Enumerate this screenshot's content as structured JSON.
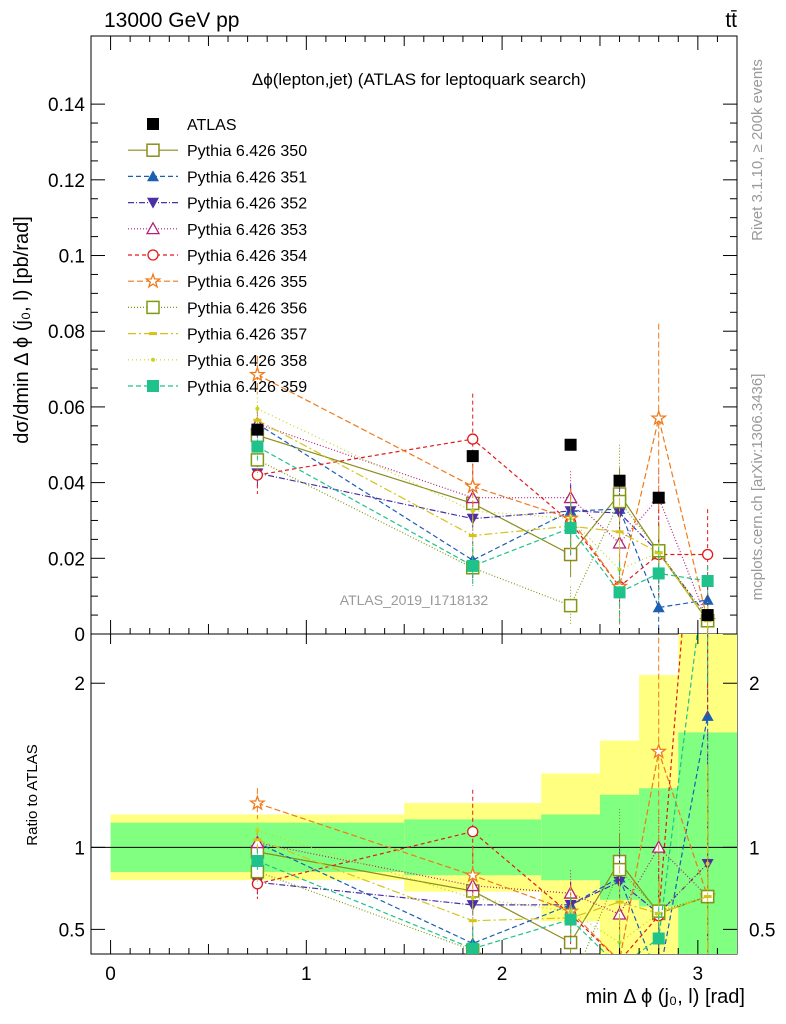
{
  "header": {
    "energy_label": "13000 GeV pp",
    "process_label": "tt̄",
    "rivet_label": "Rivet 3.1.10, ≥ 200k events",
    "mcplots_label": "mcplots.cern.ch [arXiv:1306.3436]",
    "analysis_label": "ATLAS_2019_I1718132"
  },
  "chart_data": {
    "type": "scatter",
    "title": "Δϕ(lepton,jet) (ATLAS for leptoquark search)",
    "xlabel": "min Δ ϕ (j₀, l) [rad]",
    "ylabel": "dσ/dmin Δ ϕ (j₀, l) [pb/rad]",
    "ratio_ylabel": "Ratio to ATLAS",
    "xlim": [
      -0.1,
      3.2
    ],
    "ylim": [
      0,
      0.158
    ],
    "ratio_ylim": [
      0.35,
      2.3
    ],
    "x_ticks": [
      0,
      1,
      2,
      3
    ],
    "x_tick_labels": [
      "0",
      "1",
      "2",
      "3"
    ],
    "y_ticks": [
      0,
      0.02,
      0.04,
      0.06,
      0.08,
      0.1,
      0.12,
      0.14
    ],
    "y_tick_labels": [
      "0",
      "0.02",
      "0.04",
      "0.06",
      "0.08",
      "0.1",
      "0.12",
      "0.14"
    ],
    "ratio_ticks": [
      0.5,
      1,
      2
    ],
    "ratio_tick_labels": [
      "0.5",
      "1",
      "2"
    ],
    "x": [
      0.75,
      1.85,
      2.35,
      2.6,
      2.8,
      3.05
    ],
    "bin_edges": [
      0,
      1.5,
      2.2,
      2.5,
      2.7,
      2.9,
      3.2
    ],
    "data": {
      "name": "ATLAS",
      "values": [
        0.054,
        0.047,
        0.05,
        0.0405,
        0.036,
        0.005
      ],
      "band_inner": [
        0.15,
        0.17,
        0.2,
        0.32,
        0.36,
        0.7
      ],
      "band_outer": [
        0.2,
        0.27,
        0.45,
        0.65,
        1.05,
        1.3
      ]
    },
    "series": [
      {
        "name": "Pythia 6.426 350",
        "color": "#8c8c1e",
        "dash": "",
        "marker": "square-open",
        "values": [
          0.0525,
          0.0345,
          0.021,
          0.037,
          0.0215,
          0.0035
        ],
        "errors": [
          0.004,
          0.004,
          0.006,
          0.007,
          0.008,
          0.004
        ]
      },
      {
        "name": "Pythia 6.426 351",
        "color": "#1a5fb4",
        "dash": "5,3",
        "marker": "triangle-up",
        "values": [
          0.0555,
          0.0195,
          0.0325,
          0.033,
          0.007,
          0.009
        ],
        "errors": [
          0.004,
          0.005,
          0.007,
          0.008,
          0.006,
          0.004
        ]
      },
      {
        "name": "Pythia 6.426 352",
        "color": "#4b2fa6",
        "dash": "6,2,1,2",
        "marker": "triangle-down",
        "values": [
          0.0425,
          0.0305,
          0.0325,
          0.032,
          0.0215,
          0.0045
        ],
        "errors": [
          0.004,
          0.005,
          0.007,
          0.008,
          0.007,
          0.004
        ]
      },
      {
        "name": "Pythia 6.426 353",
        "color": "#b2227a",
        "dash": "1,2",
        "marker": "triangle-up-open",
        "values": [
          0.0555,
          0.036,
          0.036,
          0.024,
          0.036,
          0.0035
        ],
        "errors": [
          0.004,
          0.005,
          0.007,
          0.008,
          0.008,
          0.004
        ]
      },
      {
        "name": "Pythia 6.426 354",
        "color": "#e2191c",
        "dash": "4,3",
        "marker": "circle-open",
        "values": [
          0.042,
          0.0515,
          0.0295,
          0.0125,
          0.021,
          0.021
        ],
        "errors": [
          0.005,
          0.012,
          0.009,
          0.01,
          0.012,
          0.012
        ]
      },
      {
        "name": "Pythia 6.426 355",
        "color": "#f07a1a",
        "dash": "6,3",
        "marker": "star-open",
        "values": [
          0.0685,
          0.039,
          0.0305,
          0.0125,
          0.057,
          0.0035
        ],
        "errors": [
          0.005,
          0.008,
          0.008,
          0.01,
          0.025,
          0.004
        ]
      },
      {
        "name": "Pythia 6.426 356",
        "color": "#7e9a10",
        "dash": "1,2",
        "marker": "square-open",
        "values": [
          0.046,
          0.0175,
          0.0075,
          0.035,
          0.022,
          0.0035
        ],
        "errors": [
          0.004,
          0.005,
          0.005,
          0.015,
          0.007,
          0.004
        ]
      },
      {
        "name": "Pythia 6.426 357",
        "color": "#d6c21a",
        "dash": "8,3,2,3",
        "marker": "dash",
        "values": [
          0.0565,
          0.026,
          0.0285,
          0.027,
          0.0215,
          0.0035
        ],
        "errors": [
          0.004,
          0.005,
          0.007,
          0.009,
          0.007,
          0.004
        ]
      },
      {
        "name": "Pythia 6.426 358",
        "color": "#c6d41e",
        "dash": "1,3",
        "marker": "dot",
        "values": [
          0.0595,
          0.0325,
          0.0305,
          0.017,
          0.0215,
          0.0045
        ],
        "errors": [
          0.004,
          0.005,
          0.007,
          0.008,
          0.007,
          0.004
        ]
      },
      {
        "name": "Pythia 6.426 359",
        "color": "#1ec28a",
        "dash": "5,3",
        "marker": "square",
        "values": [
          0.0495,
          0.018,
          0.028,
          0.011,
          0.016,
          0.014
        ],
        "errors": [
          0.004,
          0.005,
          0.007,
          0.008,
          0.007,
          0.004
        ]
      }
    ]
  }
}
